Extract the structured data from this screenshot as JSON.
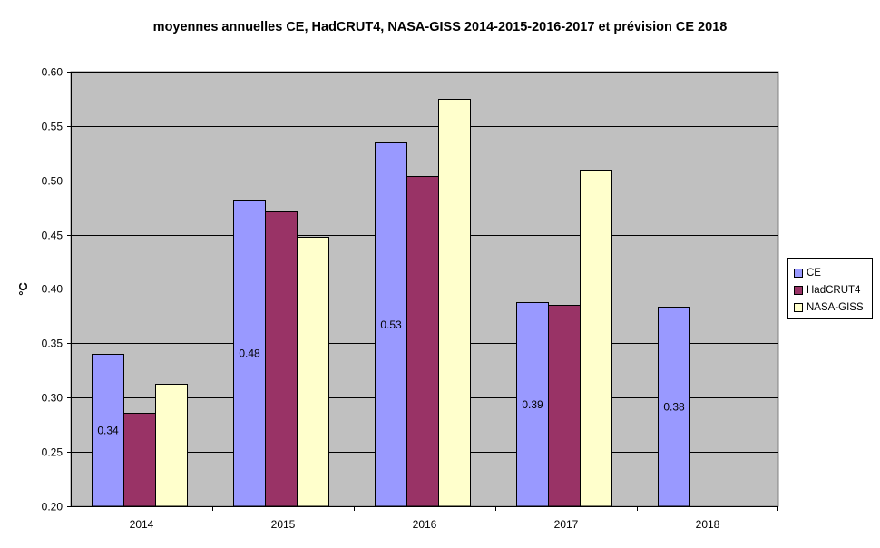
{
  "chart_data": {
    "type": "bar",
    "title": "moyennes annuelles CE, HadCRUT4, NASA-GISS 2014-2015-2016-2017 et prévision CE 2018",
    "xlabel": "",
    "ylabel": "°C",
    "ylim": [
      0.2,
      0.6
    ],
    "yticks": [
      "0.20",
      "0.25",
      "0.30",
      "0.35",
      "0.40",
      "0.45",
      "0.50",
      "0.55",
      "0.60"
    ],
    "grid": true,
    "legend_position": "right",
    "plot_background": "#C0C0C0",
    "categories": [
      "2014",
      "2015",
      "2016",
      "2017",
      "2018"
    ],
    "series": [
      {
        "name": "CE",
        "color": "#9999FF",
        "values": [
          0.34,
          0.482,
          0.535,
          0.388,
          0.384
        ],
        "labels": [
          "0.34",
          "0.48",
          "0.53",
          "0.39",
          "0.38"
        ]
      },
      {
        "name": "HadCRUT4",
        "color": "#993366",
        "values": [
          0.286,
          0.471,
          0.504,
          0.385,
          null
        ]
      },
      {
        "name": "NASA-GISS",
        "color": "#FFFFCC",
        "values": [
          0.313,
          0.448,
          0.575,
          0.51,
          null
        ]
      }
    ]
  }
}
